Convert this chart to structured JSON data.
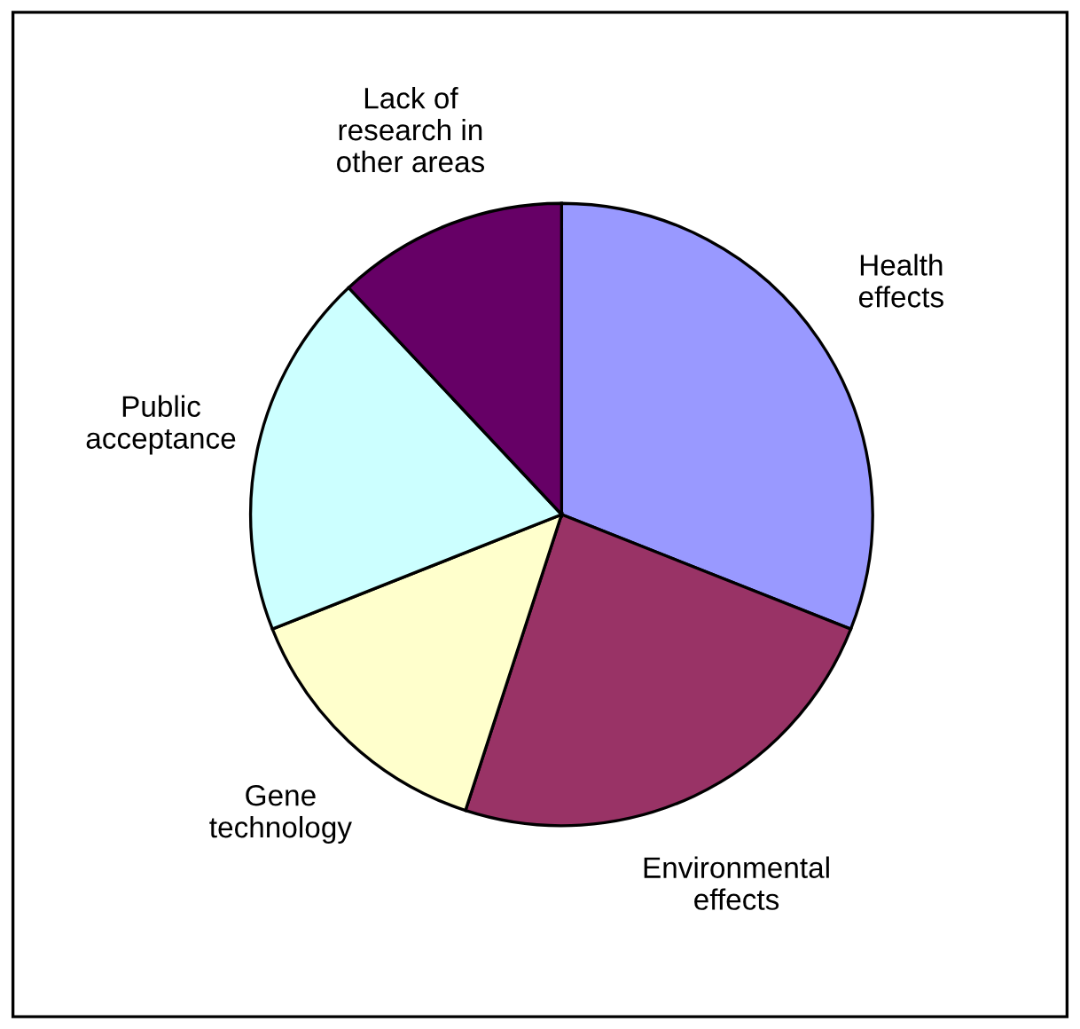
{
  "chart_data": {
    "type": "pie",
    "categories": [
      "Health effects",
      "Environmental effects",
      "Gene technology",
      "Public acceptance",
      "Lack of research in other areas"
    ],
    "values": [
      31,
      24,
      14,
      19,
      12
    ],
    "colors": [
      "#9999ff",
      "#993366",
      "#ffffcc",
      "#ccffff",
      "#660066"
    ]
  }
}
